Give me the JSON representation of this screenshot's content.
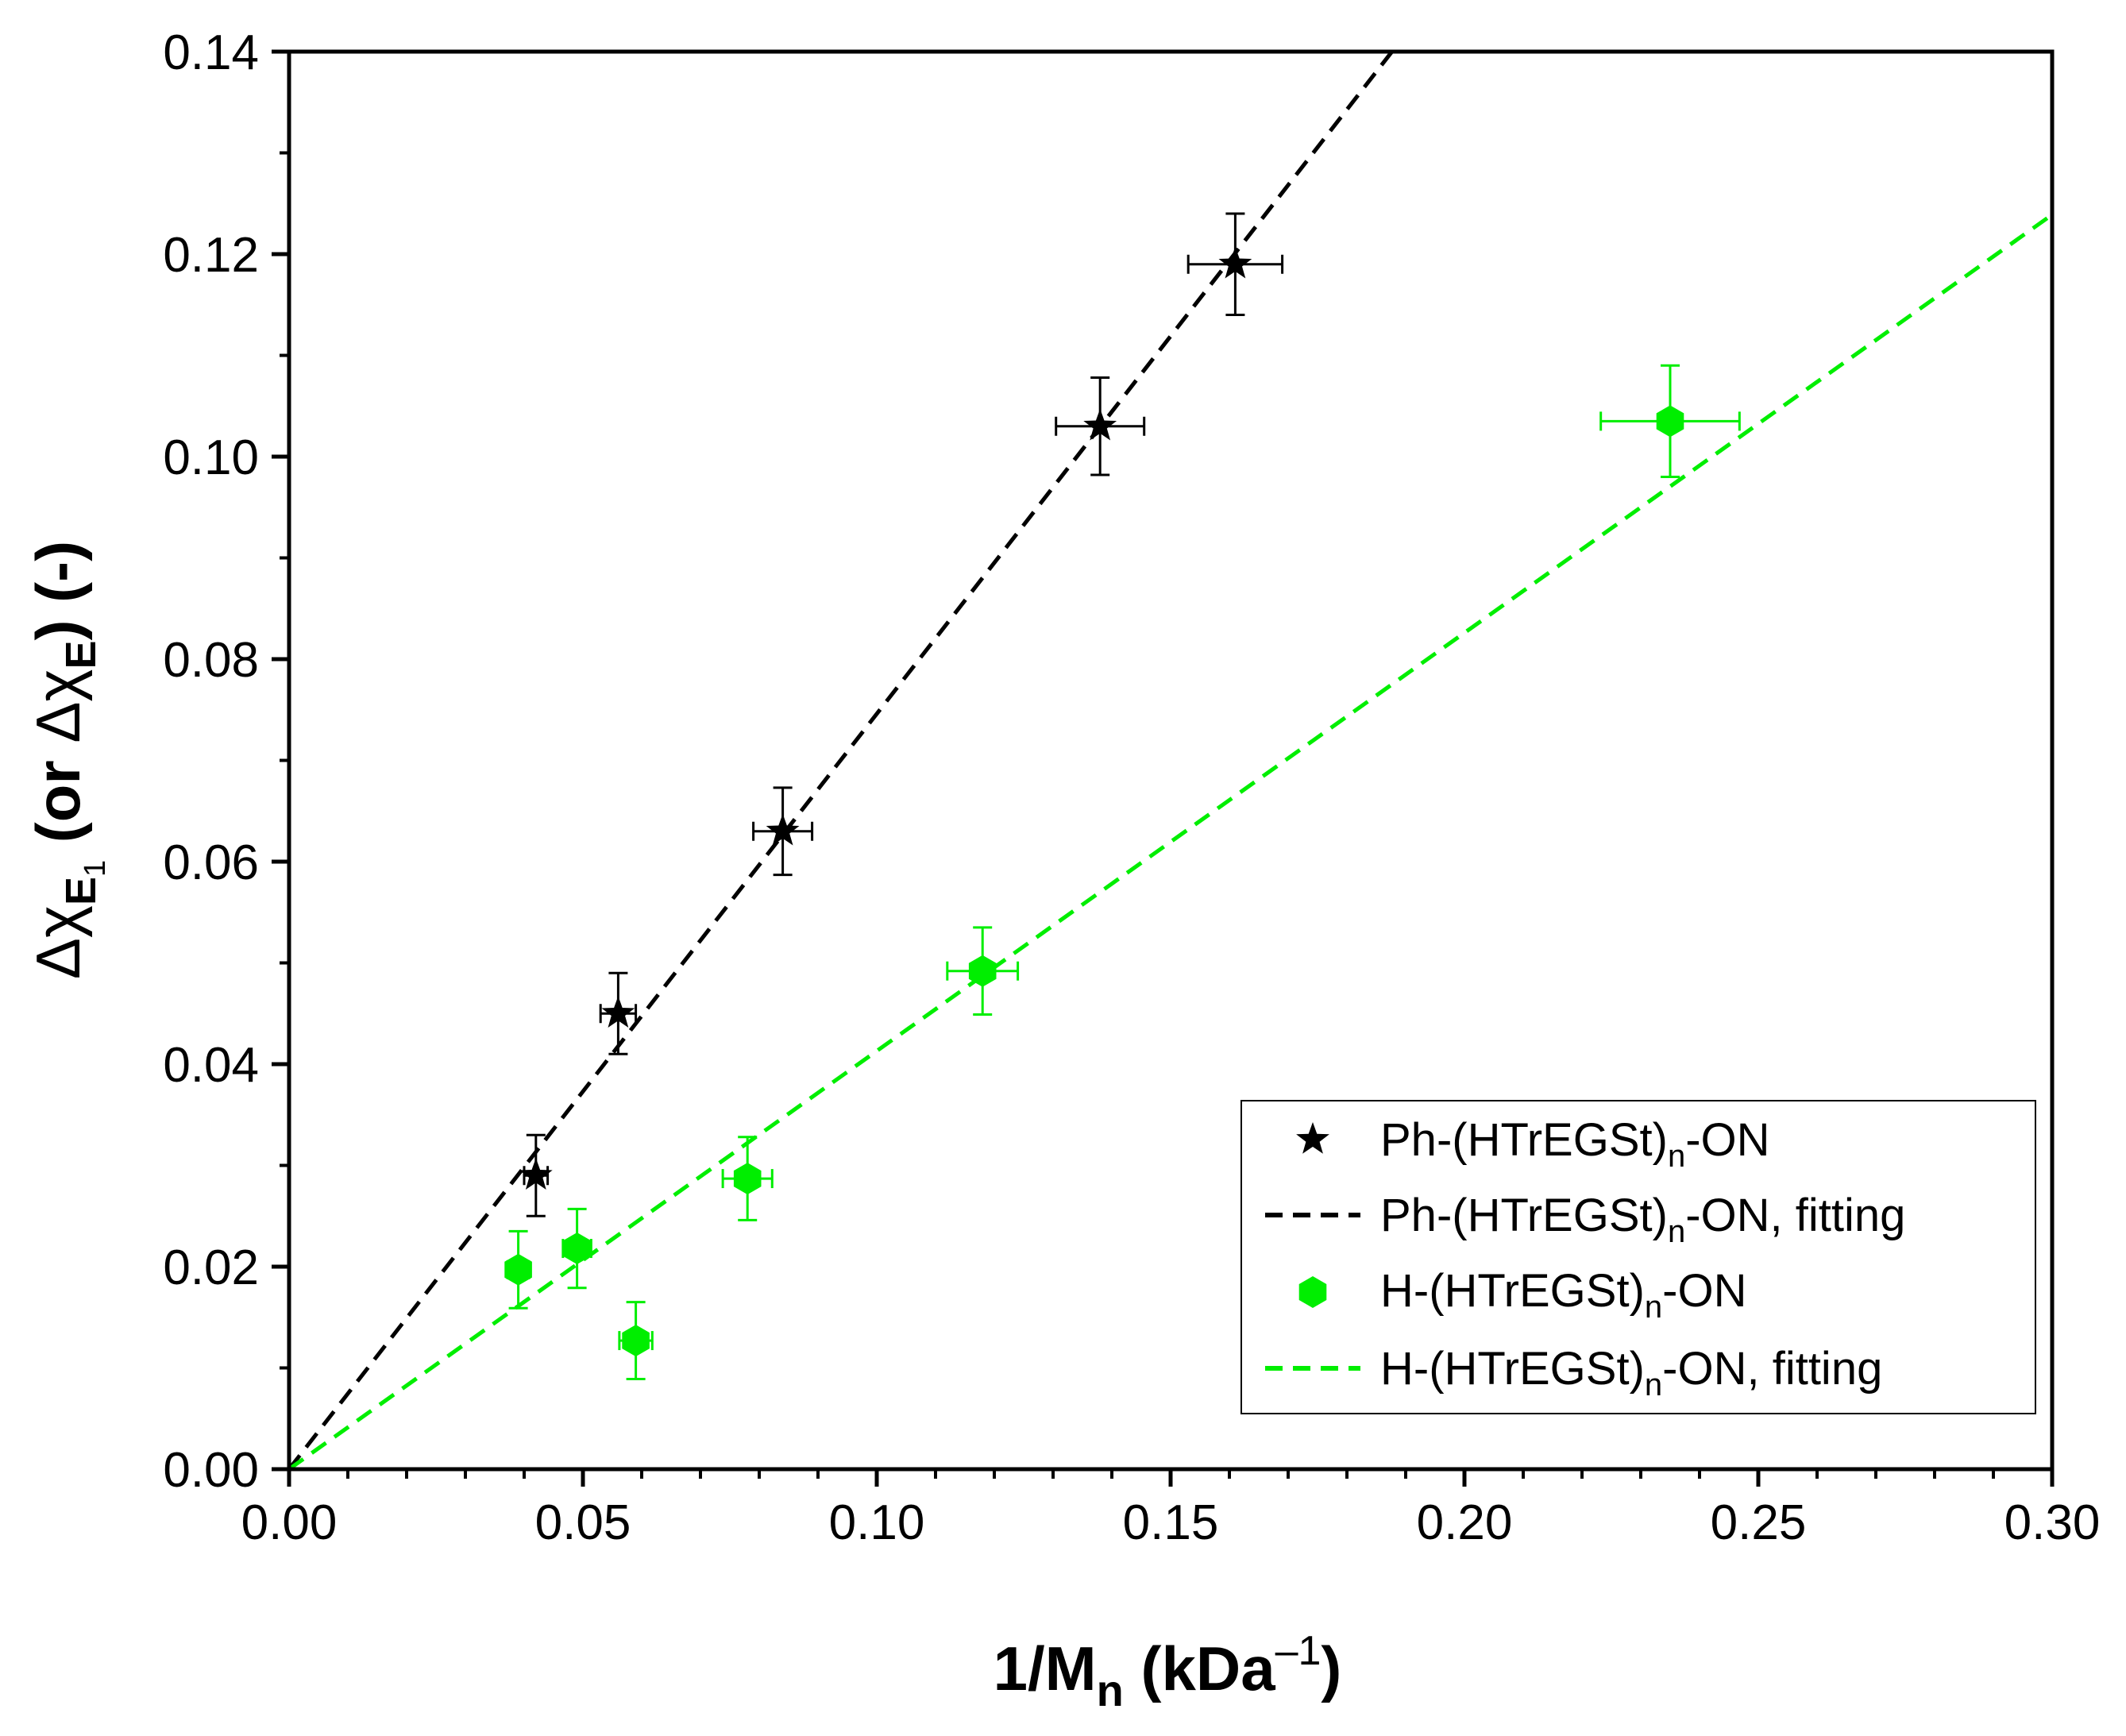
{
  "chart_data": {
    "type": "scatter",
    "xlabel": {
      "main": "1/M",
      "sub": "n",
      "unit_open": " (kDa",
      "sup": "–1",
      "unit_close": ")"
    },
    "ylabel": {
      "delta1": "Δχ",
      "sub1": "E",
      "sub1b": "1",
      "mid": " (or ",
      "delta2": "Δχ",
      "sub2": "E",
      "end": ") (-)"
    },
    "xlim": [
      0,
      0.3
    ],
    "ylim": [
      0,
      0.14
    ],
    "xticks": [
      "0.00",
      "0.05",
      "0.10",
      "0.15",
      "0.20",
      "0.25",
      "0.30"
    ],
    "yticks": [
      "0.00",
      "0.02",
      "0.04",
      "0.06",
      "0.08",
      "0.10",
      "0.12",
      "0.14"
    ],
    "series": [
      {
        "name": "Ph-(HTrEGSt)n-ON",
        "legend": {
          "pre": "Ph-(HTrEGSt)",
          "sub": "n",
          "post": "-ON"
        },
        "color": "#000000",
        "marker": "star",
        "points": [
          {
            "x": 0.042,
            "y": 0.029,
            "xerr": 0.002,
            "yerr": 0.004
          },
          {
            "x": 0.056,
            "y": 0.045,
            "xerr": 0.003,
            "yerr": 0.004
          },
          {
            "x": 0.084,
            "y": 0.063,
            "xerr": 0.005,
            "yerr": 0.0043
          },
          {
            "x": 0.138,
            "y": 0.103,
            "xerr": 0.0075,
            "yerr": 0.0048
          },
          {
            "x": 0.161,
            "y": 0.119,
            "xerr": 0.008,
            "yerr": 0.005
          }
        ]
      },
      {
        "name": "Ph-(HTrEGSt)n-ON, fitting",
        "legend": {
          "pre": "Ph-(HTrEGSt)",
          "sub": "n",
          "post": "-ON, fitting"
        },
        "color": "#000000",
        "line": "dashed",
        "fit": {
          "slope": 0.746,
          "intercept": 0.0
        }
      },
      {
        "name": "H-(HTrEGSt)n-ON",
        "legend": {
          "pre": "H-(HTrEGSt)",
          "sub": "n",
          "post": "-ON"
        },
        "color": "#00ee00",
        "marker": "hexagon",
        "points": [
          {
            "x": 0.039,
            "y": 0.0197,
            "xerr": 0.0018,
            "yerr": 0.0038
          },
          {
            "x": 0.049,
            "y": 0.0218,
            "xerr": 0.0024,
            "yerr": 0.0039
          },
          {
            "x": 0.059,
            "y": 0.0127,
            "xerr": 0.0028,
            "yerr": 0.0038
          },
          {
            "x": 0.078,
            "y": 0.0287,
            "xerr": 0.0042,
            "yerr": 0.0041
          },
          {
            "x": 0.118,
            "y": 0.0492,
            "xerr": 0.006,
            "yerr": 0.0043
          },
          {
            "x": 0.235,
            "y": 0.1035,
            "xerr": 0.0118,
            "yerr": 0.0055
          }
        ]
      },
      {
        "name": "H-(HTrEGSt)n-ON, fitting",
        "legend": {
          "pre": "H-(HTrEGSt)",
          "sub": "n",
          "post": "-ON, fitting"
        },
        "color": "#00ee00",
        "line": "dashed",
        "fit": {
          "slope": 0.413,
          "intercept": 0.0
        }
      }
    ],
    "legend_position": "bottom-right"
  }
}
